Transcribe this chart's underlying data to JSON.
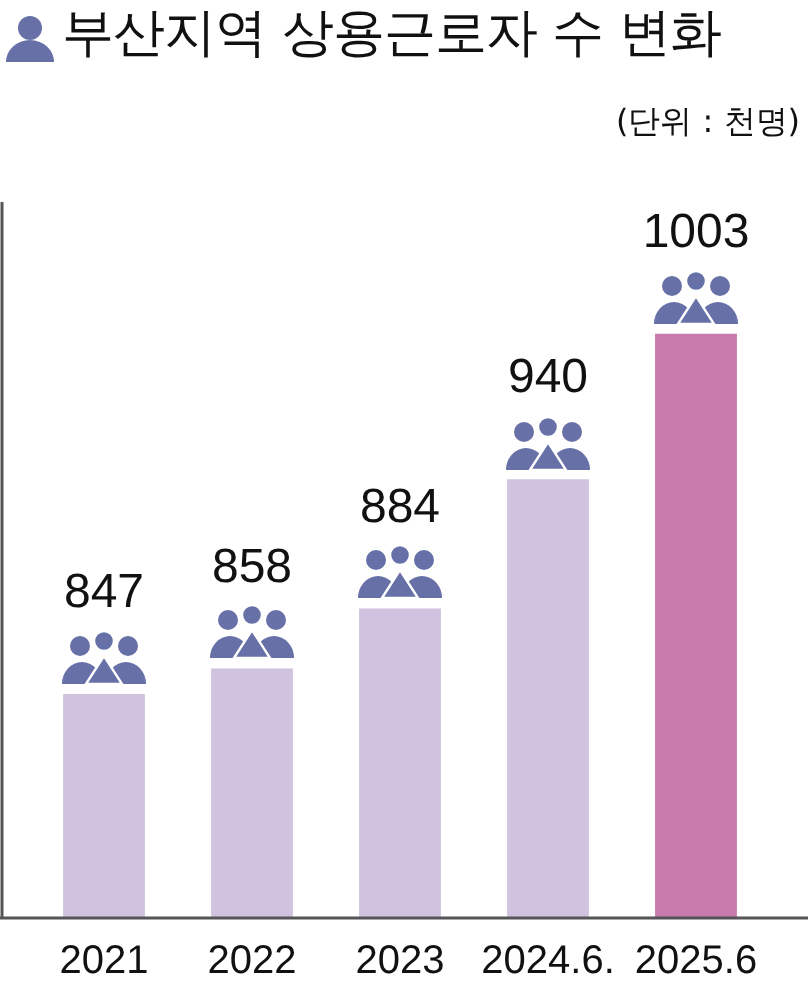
{
  "chart_data": {
    "type": "bar",
    "title": "부산지역 상용근로자 수 변화",
    "subtitle": "(단위 : 천명)",
    "categories": [
      "2021",
      "2022",
      "2023",
      "2024.6.",
      "2025.6"
    ],
    "values": [
      847,
      858,
      884,
      940,
      1003
    ],
    "colors": [
      "#d0c3e0",
      "#d0c3e0",
      "#d0c3e0",
      "#d0c3e0",
      "#c97bad"
    ],
    "ylim": [
      750,
      1060
    ],
    "tick_labels": "x",
    "data_labels": true
  }
}
